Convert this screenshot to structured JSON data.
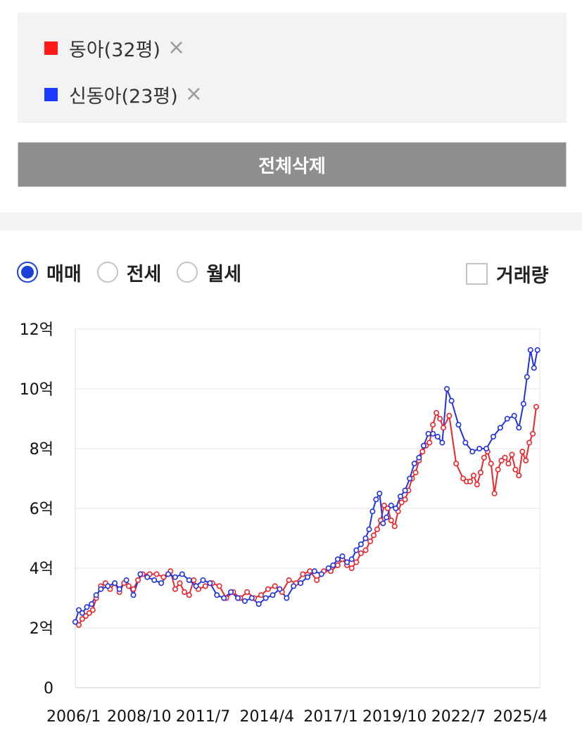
{
  "compare": {
    "items": [
      {
        "label": "동아(32평)",
        "color": "#ff1a1a",
        "remove_icon": "×"
      },
      {
        "label": "신동아(23평)",
        "color": "#1a3cff",
        "remove_icon": "×"
      }
    ],
    "delete_all_label": "전체삭제"
  },
  "deal_type": {
    "options": [
      "매매",
      "전세",
      "월세"
    ],
    "selected": "매매",
    "accent": "#1c3fd8"
  },
  "volume_toggle": {
    "label": "거래량",
    "checked": false
  },
  "chart_data": {
    "type": "line",
    "x_tick_labels": [
      "2006/1",
      "2008/10",
      "2011/7",
      "2014/4",
      "2017/1",
      "2019/10",
      "2022/7",
      "2025/4"
    ],
    "x_ticks": [
      2006.0,
      2008.75,
      2011.5,
      2014.25,
      2017.0,
      2019.75,
      2022.5,
      2025.25
    ],
    "y_tick_labels": [
      "0",
      "2억",
      "4억",
      "6억",
      "8억",
      "10억",
      "12억"
    ],
    "y_ticks": [
      0,
      2,
      4,
      6,
      8,
      10,
      12
    ],
    "xlim": [
      2006.0,
      2026.0
    ],
    "ylim": [
      0,
      12
    ],
    "grid": "horizontal",
    "series": [
      {
        "name": "동아(32평)",
        "color": "#e8262c",
        "x": [
          2006.0,
          2006.15,
          2006.3,
          2006.45,
          2006.6,
          2006.75,
          2006.9,
          2007.1,
          2007.3,
          2007.5,
          2007.7,
          2007.9,
          2008.1,
          2008.3,
          2008.5,
          2008.7,
          2008.9,
          2009.2,
          2009.5,
          2009.8,
          2010.1,
          2010.3,
          2010.5,
          2010.7,
          2010.9,
          2011.1,
          2011.3,
          2011.6,
          2011.9,
          2012.2,
          2012.5,
          2012.8,
          2013.1,
          2013.4,
          2013.7,
          2014.0,
          2014.3,
          2014.6,
          2014.9,
          2015.2,
          2015.5,
          2015.8,
          2016.1,
          2016.4,
          2016.7,
          2017.0,
          2017.3,
          2017.5,
          2017.7,
          2017.9,
          2018.1,
          2018.3,
          2018.5,
          2018.7,
          2018.85,
          2019.0,
          2019.15,
          2019.3,
          2019.45,
          2019.6,
          2019.75,
          2019.9,
          2020.05,
          2020.2,
          2020.35,
          2020.5,
          2020.65,
          2020.8,
          2020.95,
          2021.1,
          2021.25,
          2021.4,
          2021.55,
          2021.7,
          2021.85,
          2022.1,
          2022.4,
          2022.7,
          2022.85,
          2023.0,
          2023.15,
          2023.3,
          2023.45,
          2023.6,
          2023.75,
          2023.9,
          2024.05,
          2024.2,
          2024.35,
          2024.5,
          2024.65,
          2024.8,
          2024.95,
          2025.1,
          2025.25,
          2025.4,
          2025.55,
          2025.7,
          2025.85
        ],
        "values": [
          2.2,
          2.1,
          2.3,
          2.4,
          2.5,
          2.6,
          3.0,
          3.4,
          3.5,
          3.3,
          3.5,
          3.2,
          3.5,
          3.4,
          3.3,
          3.6,
          3.8,
          3.8,
          3.8,
          3.7,
          3.9,
          3.3,
          3.5,
          3.2,
          3.1,
          3.6,
          3.3,
          3.4,
          3.5,
          3.4,
          3.0,
          3.2,
          3.0,
          3.2,
          3.0,
          3.1,
          3.3,
          3.4,
          3.2,
          3.6,
          3.5,
          3.8,
          3.9,
          3.6,
          3.9,
          3.9,
          4.1,
          4.3,
          4.1,
          4.0,
          4.2,
          4.5,
          4.6,
          4.9,
          5.1,
          5.3,
          5.6,
          6.1,
          6.0,
          5.6,
          5.4,
          5.9,
          6.2,
          6.3,
          6.6,
          7.0,
          7.2,
          7.6,
          7.9,
          8.1,
          8.2,
          8.8,
          9.2,
          9.0,
          8.7,
          9.1,
          7.5,
          7.0,
          6.9,
          6.9,
          7.1,
          6.8,
          7.2,
          7.7,
          7.9,
          7.5,
          6.5,
          7.3,
          7.6,
          7.7,
          7.5,
          7.8,
          7.3,
          7.1,
          7.9,
          7.6,
          8.2,
          8.5,
          9.4
        ]
      },
      {
        "name": "신동아(23평)",
        "color": "#2233dd",
        "x": [
          2006.0,
          2006.15,
          2006.3,
          2006.5,
          2006.7,
          2006.9,
          2007.1,
          2007.4,
          2007.7,
          2007.9,
          2008.2,
          2008.5,
          2008.8,
          2009.1,
          2009.4,
          2009.7,
          2010.0,
          2010.3,
          2010.6,
          2010.9,
          2011.2,
          2011.5,
          2011.8,
          2012.1,
          2012.4,
          2012.7,
          2013.0,
          2013.3,
          2013.6,
          2013.9,
          2014.2,
          2014.5,
          2014.8,
          2015.1,
          2015.4,
          2015.7,
          2016.0,
          2016.3,
          2016.6,
          2016.9,
          2017.1,
          2017.3,
          2017.5,
          2017.7,
          2017.9,
          2018.1,
          2018.3,
          2018.5,
          2018.65,
          2018.8,
          2018.95,
          2019.1,
          2019.25,
          2019.4,
          2019.6,
          2019.8,
          2020.0,
          2020.2,
          2020.4,
          2020.6,
          2020.8,
          2021.0,
          2021.2,
          2021.4,
          2021.6,
          2021.8,
          2022.0,
          2022.2,
          2022.5,
          2022.8,
          2023.1,
          2023.4,
          2023.7,
          2024.0,
          2024.3,
          2024.6,
          2024.9,
          2025.1,
          2025.3,
          2025.45,
          2025.6,
          2025.75,
          2025.9
        ],
        "values": [
          2.2,
          2.6,
          2.5,
          2.7,
          2.8,
          3.1,
          3.3,
          3.4,
          3.5,
          3.3,
          3.6,
          3.1,
          3.8,
          3.7,
          3.6,
          3.5,
          3.8,
          3.7,
          3.8,
          3.6,
          3.4,
          3.6,
          3.5,
          3.1,
          3.0,
          3.2,
          3.0,
          2.9,
          3.0,
          2.8,
          3.0,
          3.1,
          3.3,
          3.0,
          3.4,
          3.5,
          3.7,
          3.9,
          3.8,
          4.0,
          4.1,
          4.3,
          4.4,
          4.2,
          4.3,
          4.6,
          4.8,
          5.0,
          5.3,
          5.9,
          6.3,
          6.5,
          5.5,
          5.7,
          6.1,
          6.0,
          6.4,
          6.6,
          7.0,
          7.5,
          7.7,
          8.1,
          8.5,
          8.5,
          8.4,
          8.2,
          10.0,
          9.6,
          8.8,
          8.2,
          7.9,
          8.0,
          8.0,
          8.4,
          8.7,
          9.0,
          9.1,
          8.7,
          9.5,
          10.4,
          11.3,
          10.7,
          11.3
        ]
      }
    ]
  }
}
